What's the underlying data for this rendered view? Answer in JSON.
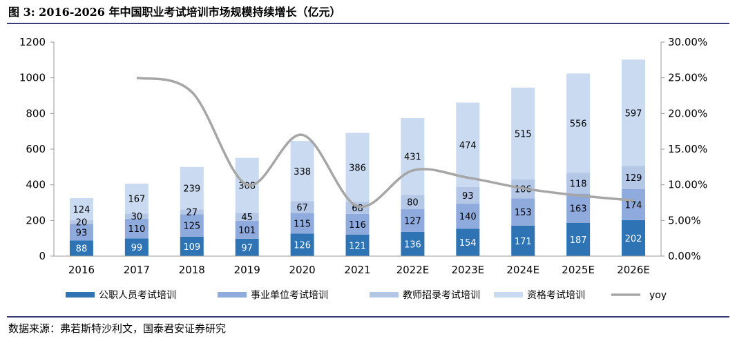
{
  "header": {
    "title": "图 3:  2016-2026 年中国职业考试培训市场规模持续增长（亿元）"
  },
  "footer": {
    "source": "数据来源：弗若斯特沙利文，国泰君安证券研究"
  },
  "colors": {
    "public_servant": "#2e74b5",
    "institution": "#8faadc",
    "teacher": "#b4c7e7",
    "qualification": "#c9daf1",
    "yoy": "#a6a6a6",
    "rule": "#3a3a7a"
  },
  "chart_data": {
    "type": "bar",
    "stacked": true,
    "categories": [
      "2016",
      "2017",
      "2018",
      "2019",
      "2020",
      "2021",
      "2022E",
      "2023E",
      "2024E",
      "2025E",
      "2026E"
    ],
    "series": [
      {
        "name": "公职人员考试培训",
        "values": [
          88,
          99,
          109,
          97,
          126,
          121,
          136,
          154,
          171,
          187,
          202
        ]
      },
      {
        "name": "事业单位考试培训",
        "values": [
          93,
          110,
          125,
          101,
          115,
          116,
          127,
          140,
          153,
          163,
          174
        ]
      },
      {
        "name": "教师招录考试培训",
        "values": [
          20,
          30,
          27,
          45,
          67,
          68,
          80,
          93,
          106,
          118,
          129
        ]
      },
      {
        "name": "资格考试培训",
        "values": [
          124,
          167,
          239,
          308,
          338,
          386,
          431,
          474,
          515,
          556,
          597
        ]
      }
    ],
    "line_series": {
      "name": "yoy",
      "axis": "right",
      "values": [
        null,
        0.25,
        0.23,
        0.1,
        0.17,
        0.07,
        0.12,
        0.11,
        0.095,
        0.085,
        0.078
      ]
    },
    "y_left": {
      "min": 0,
      "max": 1200,
      "ticks": [
        "0",
        "200",
        "400",
        "600",
        "800",
        "1000",
        "1200"
      ]
    },
    "y_right": {
      "min": 0,
      "max": 0.3,
      "ticks": [
        "0.00%",
        "5.00%",
        "10.00%",
        "15.00%",
        "20.00%",
        "25.00%",
        "30.00%"
      ]
    },
    "legend_position": "bottom"
  }
}
